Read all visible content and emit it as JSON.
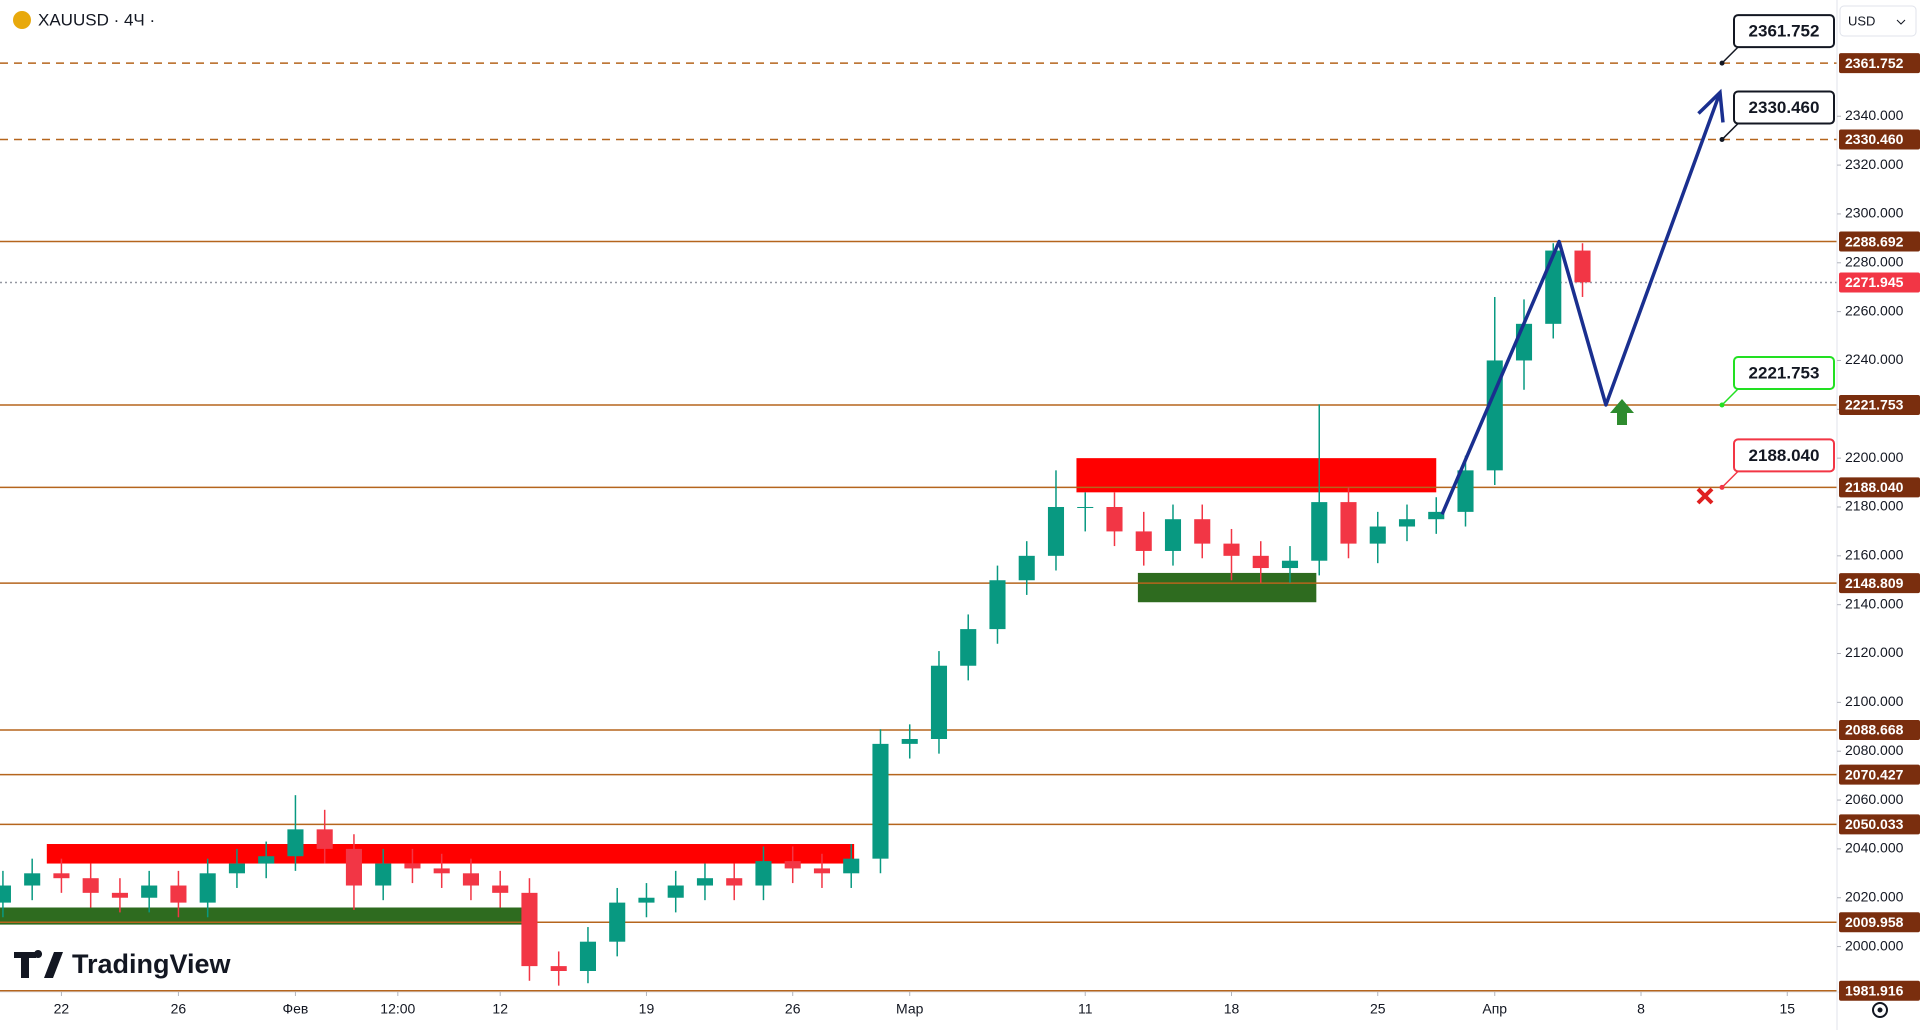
{
  "chart_data": {
    "type": "candlestick",
    "title": "XAUUSD · 4Ч ·",
    "currency": "USD",
    "watermark": "TradingView",
    "up_color": "#089981",
    "down_color": "#f23645",
    "xlim": [
      -2.1,
      60.7
    ],
    "ylim": [
      1981.4,
      2387.6
    ],
    "xticks": [
      {
        "value": 0,
        "label": "22"
      },
      {
        "value": 4,
        "label": "26"
      },
      {
        "value": 8,
        "label": "Фев"
      },
      {
        "value": 11.5,
        "label": "12:00"
      },
      {
        "value": 15,
        "label": "12"
      },
      {
        "value": 20,
        "label": "19"
      },
      {
        "value": 25,
        "label": "26"
      },
      {
        "value": 29,
        "label": "Мар"
      },
      {
        "value": 35,
        "label": "11"
      },
      {
        "value": 40,
        "label": "18"
      },
      {
        "value": 45,
        "label": "25"
      },
      {
        "value": 49,
        "label": "Апр"
      },
      {
        "value": 54,
        "label": "8"
      },
      {
        "value": 59,
        "label": "15"
      }
    ],
    "yticks": [
      {
        "value": 2000,
        "label": "2000.000"
      },
      {
        "value": 2020,
        "label": "2020.000"
      },
      {
        "value": 2040,
        "label": "2040.000"
      },
      {
        "value": 2060,
        "label": "2060.000"
      },
      {
        "value": 2080,
        "label": "2080.000"
      },
      {
        "value": 2100,
        "label": "2100.000"
      },
      {
        "value": 2120,
        "label": "2120.000"
      },
      {
        "value": 2140,
        "label": "2140.000"
      },
      {
        "value": 2160,
        "label": "2160.000"
      },
      {
        "value": 2180,
        "label": "2180.000"
      },
      {
        "value": 2200,
        "label": "2200.000"
      },
      {
        "value": 2220,
        "label": "2220.000"
      },
      {
        "value": 2240,
        "label": "2240.000"
      },
      {
        "value": 2260,
        "label": "2260.000"
      },
      {
        "value": 2280,
        "label": "2280.000"
      },
      {
        "value": 2300,
        "label": "2300.000"
      },
      {
        "value": 2320,
        "label": "2320.000"
      },
      {
        "value": 2340,
        "label": "2340.000"
      }
    ],
    "x": [
      -2,
      -1,
      0,
      1,
      2,
      3,
      4,
      5,
      6,
      7,
      8,
      9,
      10,
      11,
      12,
      13,
      14,
      15,
      16,
      17,
      18,
      19,
      20,
      21,
      22,
      23,
      24,
      25,
      26,
      27,
      28,
      29,
      30,
      31,
      32,
      33,
      34,
      35,
      36,
      37,
      38,
      39,
      40,
      41,
      42,
      43,
      44,
      45,
      46,
      47,
      48,
      49,
      50,
      51,
      52
    ],
    "open": [
      2018,
      2025,
      2030,
      2028,
      2022,
      2020,
      2025,
      2018,
      2030,
      2034,
      2037,
      2048,
      2040,
      2025,
      2034,
      2032,
      2030,
      2025,
      2022,
      1992,
      1990,
      2002,
      2018,
      2020,
      2025,
      2028,
      2025,
      2035,
      2032,
      2030,
      2036,
      2083,
      2085,
      2115,
      2130,
      2150,
      2160,
      2180,
      2180,
      2170,
      2162,
      2175,
      2165,
      2160,
      2155,
      2158,
      2182,
      2165,
      2172,
      2175,
      2178,
      2195,
      2240,
      2255,
      2285
    ],
    "high": [
      2031,
      2036,
      2036,
      2034,
      2028,
      2031,
      2031,
      2036,
      2040,
      2043,
      2062,
      2056,
      2046,
      2040,
      2040,
      2038,
      2036,
      2031,
      2028,
      1998,
      2008,
      2024,
      2026,
      2031,
      2034,
      2034,
      2041,
      2041,
      2038,
      2042,
      2089,
      2091,
      2121,
      2136,
      2156,
      2166,
      2195,
      2186,
      2186,
      2178,
      2181,
      2181,
      2171,
      2166,
      2164,
      2222,
      2188,
      2178,
      2181,
      2184,
      2201,
      2266,
      2265,
      2288,
      2288
    ],
    "low": [
      2012,
      2019,
      2022,
      2016,
      2014,
      2014,
      2012,
      2012,
      2024,
      2028,
      2031,
      2034,
      2015,
      2019,
      2026,
      2024,
      2019,
      2016,
      1986,
      1984,
      1985,
      1996,
      2012,
      2014,
      2019,
      2019,
      2019,
      2026,
      2024,
      2024,
      2030,
      2077,
      2079,
      2109,
      2124,
      2144,
      2154,
      2170,
      2164,
      2156,
      2156,
      2159,
      2150,
      2149,
      2149,
      2152,
      2159,
      2157,
      2166,
      2169,
      2172,
      2189,
      2228,
      2249,
      2266
    ],
    "close": [
      2025,
      2030,
      2028,
      2022,
      2020,
      2025,
      2018,
      2030,
      2034,
      2037,
      2048,
      2040,
      2025,
      2034,
      2032,
      2030,
      2025,
      2022,
      1992,
      1990,
      2002,
      2018,
      2020,
      2025,
      2028,
      2025,
      2035,
      2032,
      2030,
      2036,
      2083,
      2085,
      2115,
      2130,
      2150,
      2160,
      2180,
      2180,
      2170,
      2162,
      2175,
      2165,
      2160,
      2155,
      2158,
      2182,
      2165,
      2172,
      2175,
      2178,
      2195,
      2240,
      2255,
      2285,
      2272
    ],
    "levels": [
      {
        "value": 2361.752,
        "label": "2361.752",
        "style": "dashed",
        "color": "#b5651d",
        "tag": "#7a2e0e",
        "callout": "#131722"
      },
      {
        "value": 2330.46,
        "label": "2330.460",
        "style": "dashed",
        "color": "#b5651d",
        "tag": "#7a2e0e",
        "callout": "#131722"
      },
      {
        "value": 2288.692,
        "label": "2288.692",
        "style": "solid",
        "color": "#b5651d",
        "tag": "#7a2e0e"
      },
      {
        "value": 2271.945,
        "label": "2271.945",
        "style": "dotted",
        "color": "#9598a1",
        "tag": "#f23645"
      },
      {
        "value": 2221.753,
        "label": "2221.753",
        "style": "solid",
        "color": "#b5651d",
        "tag": "#7a2e0e",
        "callout": "#22e022"
      },
      {
        "value": 2188.04,
        "label": "2188.040",
        "style": "solid",
        "color": "#b5651d",
        "tag": "#7a2e0e",
        "callout": "#f23645"
      },
      {
        "value": 2148.809,
        "label": "2148.809",
        "style": "solid",
        "color": "#b5651d",
        "tag": "#7a2e0e"
      },
      {
        "value": 2088.668,
        "label": "2088.668",
        "style": "solid",
        "color": "#b5651d",
        "tag": "#7a2e0e"
      },
      {
        "value": 2070.427,
        "label": "2070.427",
        "style": "solid",
        "color": "#b5651d",
        "tag": "#7a2e0e"
      },
      {
        "value": 2050.033,
        "label": "2050.033",
        "style": "solid",
        "color": "#b5651d",
        "tag": "#7a2e0e"
      },
      {
        "value": 2009.958,
        "label": "2009.958",
        "style": "solid",
        "color": "#b5651d",
        "tag": "#7a2e0e"
      },
      {
        "value": 1981.916,
        "label": "1981.916",
        "style": "solid",
        "color": "#b5651d",
        "tag": "#7a2e0e"
      }
    ],
    "zones": [
      {
        "x0": -0.5,
        "x1": 27.1,
        "y0": 2034,
        "y1": 2042,
        "color": "#ff0000"
      },
      {
        "x0": -2.1,
        "x1": 15.9,
        "y0": 2009,
        "y1": 2016,
        "color": "#2e6b1f"
      },
      {
        "x0": 34.7,
        "x1": 47,
        "y0": 2186,
        "y1": 2200,
        "color": "#ff0000"
      },
      {
        "x0": 36.8,
        "x1": 42.9,
        "y0": 2141,
        "y1": 2153,
        "color": "#2e6b1f"
      }
    ],
    "projection": {
      "color": "#1a2f8f",
      "x": [
        47.2,
        51.2,
        52.8,
        56.7
      ],
      "values": [
        2177.0,
        2288.7,
        2221.8,
        2349.7
      ]
    }
  }
}
